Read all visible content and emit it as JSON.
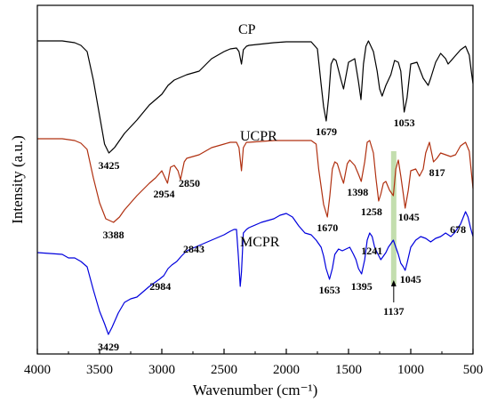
{
  "chart_data": {
    "type": "line",
    "xlabel": "Wavenumber (cm⁻¹)",
    "ylabel": "Intensity (a.u.)",
    "xlim": [
      4000,
      500
    ],
    "x_reversed": true,
    "x_ticks": [
      4000,
      3500,
      3000,
      2500,
      2000,
      1500,
      1000,
      500
    ],
    "grid": false,
    "highlight_band_x": 1137,
    "highlight_color": "#b9d8a0",
    "series": [
      {
        "name": "CP",
        "color": "#000000",
        "offset": 0,
        "points": [
          [
            4000,
            46
          ],
          [
            3800,
            46
          ],
          [
            3700,
            48
          ],
          [
            3650,
            51
          ],
          [
            3600,
            58
          ],
          [
            3550,
            90
          ],
          [
            3500,
            130
          ],
          [
            3460,
            162
          ],
          [
            3425,
            172
          ],
          [
            3380,
            166
          ],
          [
            3300,
            150
          ],
          [
            3200,
            135
          ],
          [
            3100,
            118
          ],
          [
            3000,
            106
          ],
          [
            2950,
            96
          ],
          [
            2900,
            90
          ],
          [
            2800,
            84
          ],
          [
            2700,
            80
          ],
          [
            2600,
            66
          ],
          [
            2500,
            58
          ],
          [
            2450,
            55
          ],
          [
            2400,
            54
          ],
          [
            2380,
            58
          ],
          [
            2360,
            72
          ],
          [
            2345,
            56
          ],
          [
            2320,
            52
          ],
          [
            2300,
            51
          ],
          [
            2100,
            48
          ],
          [
            2000,
            47
          ],
          [
            1800,
            47
          ],
          [
            1750,
            55
          ],
          [
            1720,
            95
          ],
          [
            1700,
            120
          ],
          [
            1679,
            136
          ],
          [
            1660,
            110
          ],
          [
            1640,
            72
          ],
          [
            1620,
            66
          ],
          [
            1600,
            68
          ],
          [
            1560,
            90
          ],
          [
            1540,
            100
          ],
          [
            1500,
            70
          ],
          [
            1450,
            66
          ],
          [
            1420,
            92
          ],
          [
            1400,
            112
          ],
          [
            1380,
            72
          ],
          [
            1360,
            52
          ],
          [
            1340,
            46
          ],
          [
            1300,
            58
          ],
          [
            1270,
            80
          ],
          [
            1250,
            100
          ],
          [
            1230,
            108
          ],
          [
            1200,
            96
          ],
          [
            1160,
            84
          ],
          [
            1130,
            68
          ],
          [
            1100,
            70
          ],
          [
            1080,
            80
          ],
          [
            1053,
            126
          ],
          [
            1030,
            110
          ],
          [
            1000,
            72
          ],
          [
            950,
            70
          ],
          [
            900,
            88
          ],
          [
            860,
            96
          ],
          [
            840,
            88
          ],
          [
            800,
            70
          ],
          [
            760,
            60
          ],
          [
            720,
            66
          ],
          [
            700,
            72
          ],
          [
            650,
            64
          ],
          [
            600,
            56
          ],
          [
            560,
            52
          ],
          [
            530,
            62
          ],
          [
            510,
            84
          ],
          [
            500,
            94
          ]
        ]
      },
      {
        "name": "UCPR",
        "color": "#b03010",
        "offset": 110,
        "points": [
          [
            4000,
            46
          ],
          [
            3800,
            46
          ],
          [
            3700,
            48
          ],
          [
            3650,
            51
          ],
          [
            3600,
            58
          ],
          [
            3550,
            90
          ],
          [
            3500,
            118
          ],
          [
            3450,
            136
          ],
          [
            3388,
            140
          ],
          [
            3340,
            134
          ],
          [
            3300,
            126
          ],
          [
            3200,
            110
          ],
          [
            3100,
            96
          ],
          [
            3050,
            90
          ],
          [
            3000,
            82
          ],
          [
            2954,
            96
          ],
          [
            2930,
            78
          ],
          [
            2900,
            76
          ],
          [
            2870,
            82
          ],
          [
            2850,
            92
          ],
          [
            2820,
            72
          ],
          [
            2800,
            68
          ],
          [
            2700,
            64
          ],
          [
            2600,
            56
          ],
          [
            2500,
            52
          ],
          [
            2450,
            50
          ],
          [
            2400,
            50
          ],
          [
            2380,
            56
          ],
          [
            2360,
            82
          ],
          [
            2345,
            56
          ],
          [
            2320,
            50
          ],
          [
            2300,
            50
          ],
          [
            2100,
            48
          ],
          [
            2000,
            48
          ],
          [
            1800,
            48
          ],
          [
            1760,
            52
          ],
          [
            1740,
            80
          ],
          [
            1720,
            100
          ],
          [
            1700,
            120
          ],
          [
            1670,
            134
          ],
          [
            1650,
            110
          ],
          [
            1630,
            80
          ],
          [
            1610,
            72
          ],
          [
            1590,
            74
          ],
          [
            1560,
            88
          ],
          [
            1540,
            96
          ],
          [
            1510,
            74
          ],
          [
            1490,
            70
          ],
          [
            1450,
            76
          ],
          [
            1420,
            86
          ],
          [
            1398,
            94
          ],
          [
            1370,
            72
          ],
          [
            1350,
            50
          ],
          [
            1330,
            48
          ],
          [
            1300,
            62
          ],
          [
            1280,
            90
          ],
          [
            1258,
            116
          ],
          [
            1240,
            108
          ],
          [
            1220,
            96
          ],
          [
            1200,
            94
          ],
          [
            1170,
            104
          ],
          [
            1140,
            110
          ],
          [
            1120,
            80
          ],
          [
            1100,
            70
          ],
          [
            1080,
            88
          ],
          [
            1060,
            108
          ],
          [
            1045,
            124
          ],
          [
            1020,
            104
          ],
          [
            1000,
            82
          ],
          [
            960,
            80
          ],
          [
            930,
            88
          ],
          [
            900,
            80
          ],
          [
            880,
            62
          ],
          [
            850,
            50
          ],
          [
            817,
            72
          ],
          [
            790,
            68
          ],
          [
            760,
            62
          ],
          [
            720,
            64
          ],
          [
            680,
            66
          ],
          [
            640,
            64
          ],
          [
            600,
            54
          ],
          [
            560,
            50
          ],
          [
            530,
            60
          ],
          [
            510,
            88
          ],
          [
            500,
            102
          ]
        ]
      },
      {
        "name": "MCPR",
        "color": "#0000dd",
        "offset": 238,
        "points": [
          [
            4000,
            46
          ],
          [
            3900,
            47
          ],
          [
            3800,
            48
          ],
          [
            3750,
            52
          ],
          [
            3700,
            52
          ],
          [
            3650,
            56
          ],
          [
            3600,
            62
          ],
          [
            3550,
            88
          ],
          [
            3500,
            112
          ],
          [
            3460,
            126
          ],
          [
            3429,
            138
          ],
          [
            3400,
            130
          ],
          [
            3350,
            114
          ],
          [
            3300,
            102
          ],
          [
            3250,
            98
          ],
          [
            3200,
            96
          ],
          [
            3150,
            90
          ],
          [
            3100,
            84
          ],
          [
            3060,
            80
          ],
          [
            3020,
            76
          ],
          [
            2984,
            72
          ],
          [
            2950,
            64
          ],
          [
            2920,
            60
          ],
          [
            2880,
            56
          ],
          [
            2843,
            50
          ],
          [
            2800,
            44
          ],
          [
            2700,
            38
          ],
          [
            2600,
            32
          ],
          [
            2500,
            26
          ],
          [
            2450,
            22
          ],
          [
            2420,
            20
          ],
          [
            2400,
            20
          ],
          [
            2385,
            50
          ],
          [
            2370,
            84
          ],
          [
            2360,
            68
          ],
          [
            2345,
            24
          ],
          [
            2320,
            20
          ],
          [
            2300,
            18
          ],
          [
            2200,
            12
          ],
          [
            2100,
            8
          ],
          [
            2050,
            4
          ],
          [
            2000,
            2
          ],
          [
            1950,
            6
          ],
          [
            1900,
            16
          ],
          [
            1850,
            24
          ],
          [
            1800,
            26
          ],
          [
            1760,
            32
          ],
          [
            1720,
            40
          ],
          [
            1700,
            50
          ],
          [
            1680,
            64
          ],
          [
            1653,
            76
          ],
          [
            1630,
            64
          ],
          [
            1610,
            48
          ],
          [
            1580,
            42
          ],
          [
            1550,
            44
          ],
          [
            1520,
            42
          ],
          [
            1490,
            40
          ],
          [
            1460,
            48
          ],
          [
            1440,
            54
          ],
          [
            1420,
            64
          ],
          [
            1395,
            70
          ],
          [
            1370,
            54
          ],
          [
            1350,
            32
          ],
          [
            1330,
            24
          ],
          [
            1310,
            28
          ],
          [
            1290,
            40
          ],
          [
            1270,
            46
          ],
          [
            1241,
            54
          ],
          [
            1220,
            50
          ],
          [
            1200,
            46
          ],
          [
            1180,
            40
          ],
          [
            1160,
            36
          ],
          [
            1140,
            32
          ],
          [
            1120,
            40
          ],
          [
            1100,
            48
          ],
          [
            1080,
            58
          ],
          [
            1060,
            62
          ],
          [
            1045,
            66
          ],
          [
            1030,
            58
          ],
          [
            1000,
            40
          ],
          [
            960,
            32
          ],
          [
            920,
            28
          ],
          [
            880,
            30
          ],
          [
            840,
            34
          ],
          [
            800,
            30
          ],
          [
            760,
            28
          ],
          [
            720,
            24
          ],
          [
            678,
            28
          ],
          [
            650,
            24
          ],
          [
            600,
            14
          ],
          [
            560,
            0
          ],
          [
            540,
            6
          ],
          [
            520,
            18
          ],
          [
            500,
            28
          ]
        ]
      }
    ],
    "peak_labels": [
      {
        "series": "CP",
        "x": 3425,
        "text": "3425"
      },
      {
        "series": "CP",
        "x": 1679,
        "text": "1679"
      },
      {
        "series": "CP",
        "x": 1053,
        "text": "1053"
      },
      {
        "series": "UCPR",
        "x": 3388,
        "text": "3388"
      },
      {
        "series": "UCPR",
        "x": 2954,
        "text": "2954"
      },
      {
        "series": "UCPR",
        "x": 2850,
        "text": "2850"
      },
      {
        "series": "UCPR",
        "x": 1670,
        "text": "1670"
      },
      {
        "series": "UCPR",
        "x": 1398,
        "text": "1398"
      },
      {
        "series": "UCPR",
        "x": 1258,
        "text": "1258"
      },
      {
        "series": "UCPR",
        "x": 1045,
        "text": "1045"
      },
      {
        "series": "UCPR",
        "x": 817,
        "text": "817"
      },
      {
        "series": "MCPR",
        "x": 3429,
        "text": "3429"
      },
      {
        "series": "MCPR",
        "x": 2984,
        "text": "2984"
      },
      {
        "series": "MCPR",
        "x": 2843,
        "text": "2843"
      },
      {
        "series": "MCPR",
        "x": 1653,
        "text": "1653"
      },
      {
        "series": "MCPR",
        "x": 1395,
        "text": "1395"
      },
      {
        "series": "MCPR",
        "x": 1241,
        "text": "1241"
      },
      {
        "series": "MCPR",
        "x": 1045,
        "text": "1045"
      },
      {
        "series": "MCPR",
        "x": 678,
        "text": "678"
      },
      {
        "series": "MCPR",
        "x": 1137,
        "text": "1137"
      }
    ]
  }
}
